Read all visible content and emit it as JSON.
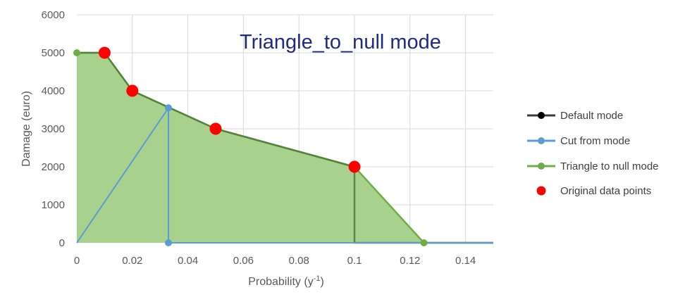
{
  "chart_data": {
    "type": "area",
    "title": "Triangle_to_null  mode",
    "xlabel": "Probability",
    "xlabel_unit_base": "y",
    "xlabel_unit_exp": "-1",
    "ylabel": "Damage (euro)",
    "xlim": [
      0,
      0.15
    ],
    "ylim": [
      0,
      6000
    ],
    "x_ticks": [
      "0",
      "0.02",
      "0.04",
      "0.06",
      "0.08",
      "0.1",
      "0.12",
      "0.14"
    ],
    "x_tick_values": [
      0,
      0.02,
      0.04,
      0.06,
      0.08,
      0.1,
      0.12,
      0.14
    ],
    "y_ticks": [
      "0",
      "1000",
      "2000",
      "3000",
      "4000",
      "5000",
      "6000"
    ],
    "y_tick_values": [
      0,
      1000,
      2000,
      3000,
      4000,
      5000,
      6000
    ],
    "grid": true,
    "legend_position": "right",
    "series": [
      {
        "name": "Default mode",
        "color": "#3a3a3a",
        "x": [
          0,
          0.01,
          0.02,
          0.05,
          0.1,
          0.1,
          0.15
        ],
        "y": [
          5000,
          5000,
          4000,
          3000,
          2000,
          0,
          0
        ]
      },
      {
        "name": "Cut from mode",
        "color": "#5b9bd5",
        "x": [
          0,
          0.033,
          0.033,
          0.15
        ],
        "y": [
          0,
          3550,
          0,
          0
        ]
      },
      {
        "name": "Triangle to null mode",
        "color": "#70ad47",
        "x": [
          0,
          0.01,
          0.02,
          0.05,
          0.1,
          0.125,
          0.15
        ],
        "y": [
          5000,
          5000,
          4000,
          3000,
          2000,
          0,
          0
        ]
      },
      {
        "name": "Original data points",
        "color": "#ff0000",
        "x": [
          0.01,
          0.02,
          0.05,
          0.1
        ],
        "y": [
          5000,
          4000,
          3000,
          2000
        ]
      }
    ],
    "cut_points": {
      "x": [
        0.033,
        0.033
      ],
      "y": [
        3550,
        0
      ]
    },
    "triangle_points": {
      "x": [
        0,
        0.125
      ],
      "y": [
        5000,
        0
      ]
    },
    "fill_color": "#a9d18e"
  }
}
